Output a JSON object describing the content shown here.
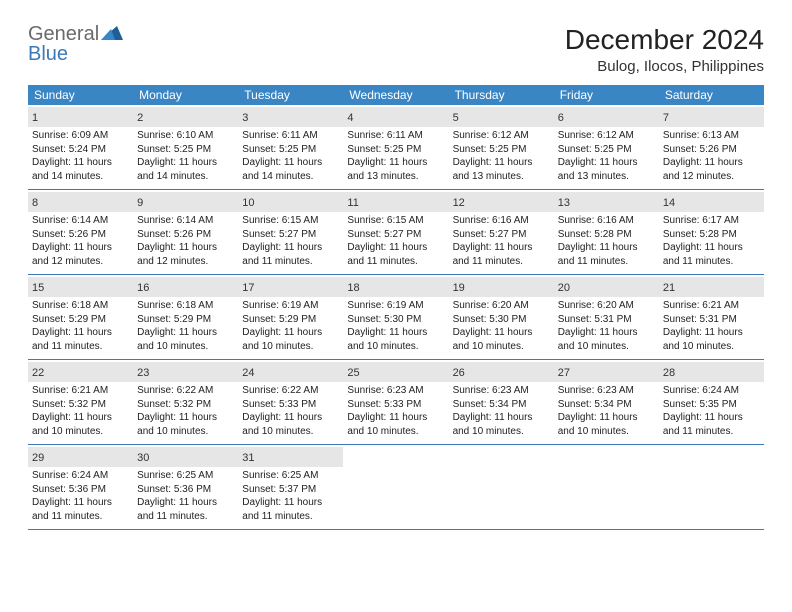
{
  "logo": {
    "brand1": "General",
    "brand2": "Blue"
  },
  "title": "December 2024",
  "location": "Bulog, Ilocos, Philippines",
  "header_bg": "#3a86c4",
  "border_color": "#3a7ab8",
  "daynum_bg": "#e6e6e6",
  "daynames": [
    "Sunday",
    "Monday",
    "Tuesday",
    "Wednesday",
    "Thursday",
    "Friday",
    "Saturday"
  ],
  "weeks": [
    [
      {
        "n": "1",
        "sr": "Sunrise: 6:09 AM",
        "ss": "Sunset: 5:24 PM",
        "d1": "Daylight: 11 hours",
        "d2": "and 14 minutes."
      },
      {
        "n": "2",
        "sr": "Sunrise: 6:10 AM",
        "ss": "Sunset: 5:25 PM",
        "d1": "Daylight: 11 hours",
        "d2": "and 14 minutes."
      },
      {
        "n": "3",
        "sr": "Sunrise: 6:11 AM",
        "ss": "Sunset: 5:25 PM",
        "d1": "Daylight: 11 hours",
        "d2": "and 14 minutes."
      },
      {
        "n": "4",
        "sr": "Sunrise: 6:11 AM",
        "ss": "Sunset: 5:25 PM",
        "d1": "Daylight: 11 hours",
        "d2": "and 13 minutes."
      },
      {
        "n": "5",
        "sr": "Sunrise: 6:12 AM",
        "ss": "Sunset: 5:25 PM",
        "d1": "Daylight: 11 hours",
        "d2": "and 13 minutes."
      },
      {
        "n": "6",
        "sr": "Sunrise: 6:12 AM",
        "ss": "Sunset: 5:25 PM",
        "d1": "Daylight: 11 hours",
        "d2": "and 13 minutes."
      },
      {
        "n": "7",
        "sr": "Sunrise: 6:13 AM",
        "ss": "Sunset: 5:26 PM",
        "d1": "Daylight: 11 hours",
        "d2": "and 12 minutes."
      }
    ],
    [
      {
        "n": "8",
        "sr": "Sunrise: 6:14 AM",
        "ss": "Sunset: 5:26 PM",
        "d1": "Daylight: 11 hours",
        "d2": "and 12 minutes."
      },
      {
        "n": "9",
        "sr": "Sunrise: 6:14 AM",
        "ss": "Sunset: 5:26 PM",
        "d1": "Daylight: 11 hours",
        "d2": "and 12 minutes."
      },
      {
        "n": "10",
        "sr": "Sunrise: 6:15 AM",
        "ss": "Sunset: 5:27 PM",
        "d1": "Daylight: 11 hours",
        "d2": "and 11 minutes."
      },
      {
        "n": "11",
        "sr": "Sunrise: 6:15 AM",
        "ss": "Sunset: 5:27 PM",
        "d1": "Daylight: 11 hours",
        "d2": "and 11 minutes."
      },
      {
        "n": "12",
        "sr": "Sunrise: 6:16 AM",
        "ss": "Sunset: 5:27 PM",
        "d1": "Daylight: 11 hours",
        "d2": "and 11 minutes."
      },
      {
        "n": "13",
        "sr": "Sunrise: 6:16 AM",
        "ss": "Sunset: 5:28 PM",
        "d1": "Daylight: 11 hours",
        "d2": "and 11 minutes."
      },
      {
        "n": "14",
        "sr": "Sunrise: 6:17 AM",
        "ss": "Sunset: 5:28 PM",
        "d1": "Daylight: 11 hours",
        "d2": "and 11 minutes."
      }
    ],
    [
      {
        "n": "15",
        "sr": "Sunrise: 6:18 AM",
        "ss": "Sunset: 5:29 PM",
        "d1": "Daylight: 11 hours",
        "d2": "and 11 minutes."
      },
      {
        "n": "16",
        "sr": "Sunrise: 6:18 AM",
        "ss": "Sunset: 5:29 PM",
        "d1": "Daylight: 11 hours",
        "d2": "and 10 minutes."
      },
      {
        "n": "17",
        "sr": "Sunrise: 6:19 AM",
        "ss": "Sunset: 5:29 PM",
        "d1": "Daylight: 11 hours",
        "d2": "and 10 minutes."
      },
      {
        "n": "18",
        "sr": "Sunrise: 6:19 AM",
        "ss": "Sunset: 5:30 PM",
        "d1": "Daylight: 11 hours",
        "d2": "and 10 minutes."
      },
      {
        "n": "19",
        "sr": "Sunrise: 6:20 AM",
        "ss": "Sunset: 5:30 PM",
        "d1": "Daylight: 11 hours",
        "d2": "and 10 minutes."
      },
      {
        "n": "20",
        "sr": "Sunrise: 6:20 AM",
        "ss": "Sunset: 5:31 PM",
        "d1": "Daylight: 11 hours",
        "d2": "and 10 minutes."
      },
      {
        "n": "21",
        "sr": "Sunrise: 6:21 AM",
        "ss": "Sunset: 5:31 PM",
        "d1": "Daylight: 11 hours",
        "d2": "and 10 minutes."
      }
    ],
    [
      {
        "n": "22",
        "sr": "Sunrise: 6:21 AM",
        "ss": "Sunset: 5:32 PM",
        "d1": "Daylight: 11 hours",
        "d2": "and 10 minutes."
      },
      {
        "n": "23",
        "sr": "Sunrise: 6:22 AM",
        "ss": "Sunset: 5:32 PM",
        "d1": "Daylight: 11 hours",
        "d2": "and 10 minutes."
      },
      {
        "n": "24",
        "sr": "Sunrise: 6:22 AM",
        "ss": "Sunset: 5:33 PM",
        "d1": "Daylight: 11 hours",
        "d2": "and 10 minutes."
      },
      {
        "n": "25",
        "sr": "Sunrise: 6:23 AM",
        "ss": "Sunset: 5:33 PM",
        "d1": "Daylight: 11 hours",
        "d2": "and 10 minutes."
      },
      {
        "n": "26",
        "sr": "Sunrise: 6:23 AM",
        "ss": "Sunset: 5:34 PM",
        "d1": "Daylight: 11 hours",
        "d2": "and 10 minutes."
      },
      {
        "n": "27",
        "sr": "Sunrise: 6:23 AM",
        "ss": "Sunset: 5:34 PM",
        "d1": "Daylight: 11 hours",
        "d2": "and 10 minutes."
      },
      {
        "n": "28",
        "sr": "Sunrise: 6:24 AM",
        "ss": "Sunset: 5:35 PM",
        "d1": "Daylight: 11 hours",
        "d2": "and 11 minutes."
      }
    ],
    [
      {
        "n": "29",
        "sr": "Sunrise: 6:24 AM",
        "ss": "Sunset: 5:36 PM",
        "d1": "Daylight: 11 hours",
        "d2": "and 11 minutes."
      },
      {
        "n": "30",
        "sr": "Sunrise: 6:25 AM",
        "ss": "Sunset: 5:36 PM",
        "d1": "Daylight: 11 hours",
        "d2": "and 11 minutes."
      },
      {
        "n": "31",
        "sr": "Sunrise: 6:25 AM",
        "ss": "Sunset: 5:37 PM",
        "d1": "Daylight: 11 hours",
        "d2": "and 11 minutes."
      },
      {
        "empty": true
      },
      {
        "empty": true
      },
      {
        "empty": true
      },
      {
        "empty": true
      }
    ]
  ]
}
